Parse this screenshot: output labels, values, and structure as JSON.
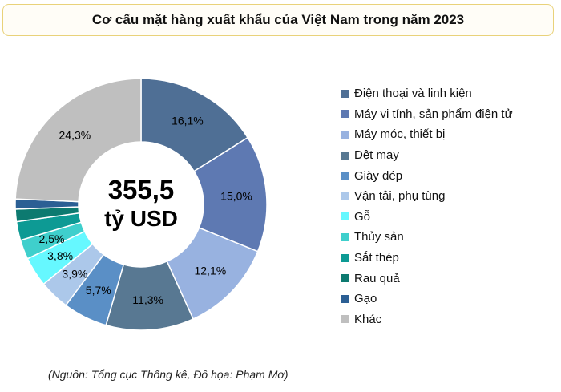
{
  "chart_data": {
    "type": "donut",
    "title": "Cơ cấu mặt hàng xuất khẩu của Việt Nam trong năm 2023",
    "center_label": [
      "355,5",
      "tỷ USD"
    ],
    "categories": [
      "Điện thoại và linh kiện",
      "Máy vi tính, sản phẩm điện tử",
      "Máy móc, thiết bị",
      "Dệt may",
      "Giày dép",
      "Vận tải, phụ tùng",
      "Gỗ",
      "Thủy sản",
      "Sắt thép",
      "Rau quả",
      "Gạo",
      "Khác"
    ],
    "values": [
      16.1,
      15.0,
      12.1,
      11.3,
      5.7,
      3.9,
      3.8,
      2.5,
      2.4,
      1.6,
      1.3,
      24.3
    ],
    "data_labels": [
      "16,1%",
      "15,0%",
      "12,1%",
      "11,3%",
      "5,7%",
      "3,9%",
      "3,8%",
      "2,5%",
      "",
      "",
      "",
      "24,3%"
    ],
    "colors": [
      "#4f6f95",
      "#5e79b2",
      "#98b2e0",
      "#587892",
      "#5a8fc6",
      "#acc8ea",
      "#66f8ff",
      "#3fcfcc",
      "#0d9a94",
      "#0d7a70",
      "#2b5f94",
      "#bfbfbf"
    ],
    "legend_position": "right"
  },
  "source_note": "(Nguồn: Tổng cục Thống kê, Đồ họa: Phạm Mơ)"
}
